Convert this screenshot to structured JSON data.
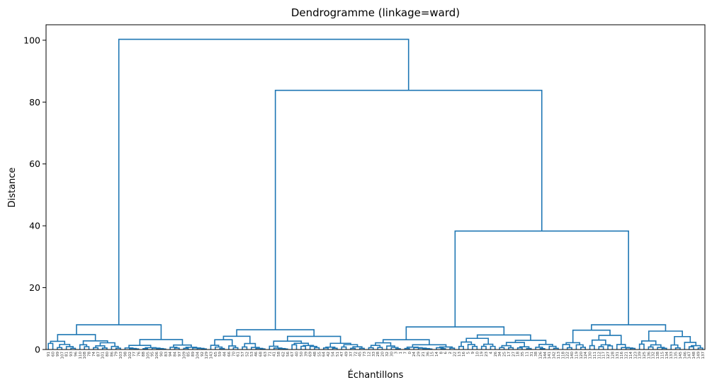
{
  "chart_data": {
    "type": "dendrogram",
    "title": "Dendrogramme (linkage=ward)",
    "xlabel": "Échantillons",
    "ylabel": "Distance",
    "ylim": [
      0,
      105
    ],
    "yticks": [
      0,
      20,
      40,
      60,
      80,
      100
    ],
    "line_color": "#1f77b4",
    "leaves": [
      "91",
      "60",
      "99",
      "107",
      "81",
      "93",
      "96",
      "110",
      "108",
      "78",
      "74",
      "87",
      "101",
      "80",
      "86",
      "79",
      "103",
      "98",
      "102",
      "77",
      "76",
      "88",
      "105",
      "95",
      "106",
      "90",
      "83",
      "94",
      "84",
      "97",
      "109",
      "85",
      "89",
      "104",
      "92",
      "129",
      "143",
      "65",
      "59",
      "44",
      "66",
      "70",
      "61",
      "57",
      "52",
      "53",
      "46",
      "68",
      "63",
      "71",
      "41",
      "58",
      "62",
      "56",
      "67",
      "40",
      "50",
      "39",
      "69",
      "48",
      "55",
      "64",
      "42",
      "54",
      "51",
      "47",
      "49",
      "37",
      "72",
      "45",
      "73",
      "12",
      "33",
      "28",
      "20",
      "32",
      "30",
      "3",
      "1",
      "7",
      "0",
      "24",
      "29",
      "21",
      "36",
      "15",
      "14",
      "8",
      "6",
      "2",
      "22",
      "13",
      "16",
      "5",
      "9",
      "10",
      "19",
      "23",
      "4",
      "26",
      "34",
      "25",
      "17",
      "27",
      "18",
      "35",
      "11",
      "31",
      "38",
      "126",
      "144",
      "141",
      "142",
      "113",
      "118",
      "122",
      "140",
      "119",
      "120",
      "124",
      "130",
      "111",
      "112",
      "117",
      "127",
      "128",
      "131",
      "116",
      "121",
      "114",
      "123",
      "139",
      "125",
      "136",
      "132",
      "138",
      "115",
      "134",
      "133",
      "135",
      "145",
      "146",
      "147",
      "148",
      "149",
      "137"
    ],
    "merge_heights": {
      "root": 100.3,
      "second": 83.8,
      "third": 38.3,
      "cluster_left": 8.0,
      "cluster_mid": 6.4,
      "cluster_right_a": 7.3,
      "cluster_right_b": 8.0
    }
  }
}
